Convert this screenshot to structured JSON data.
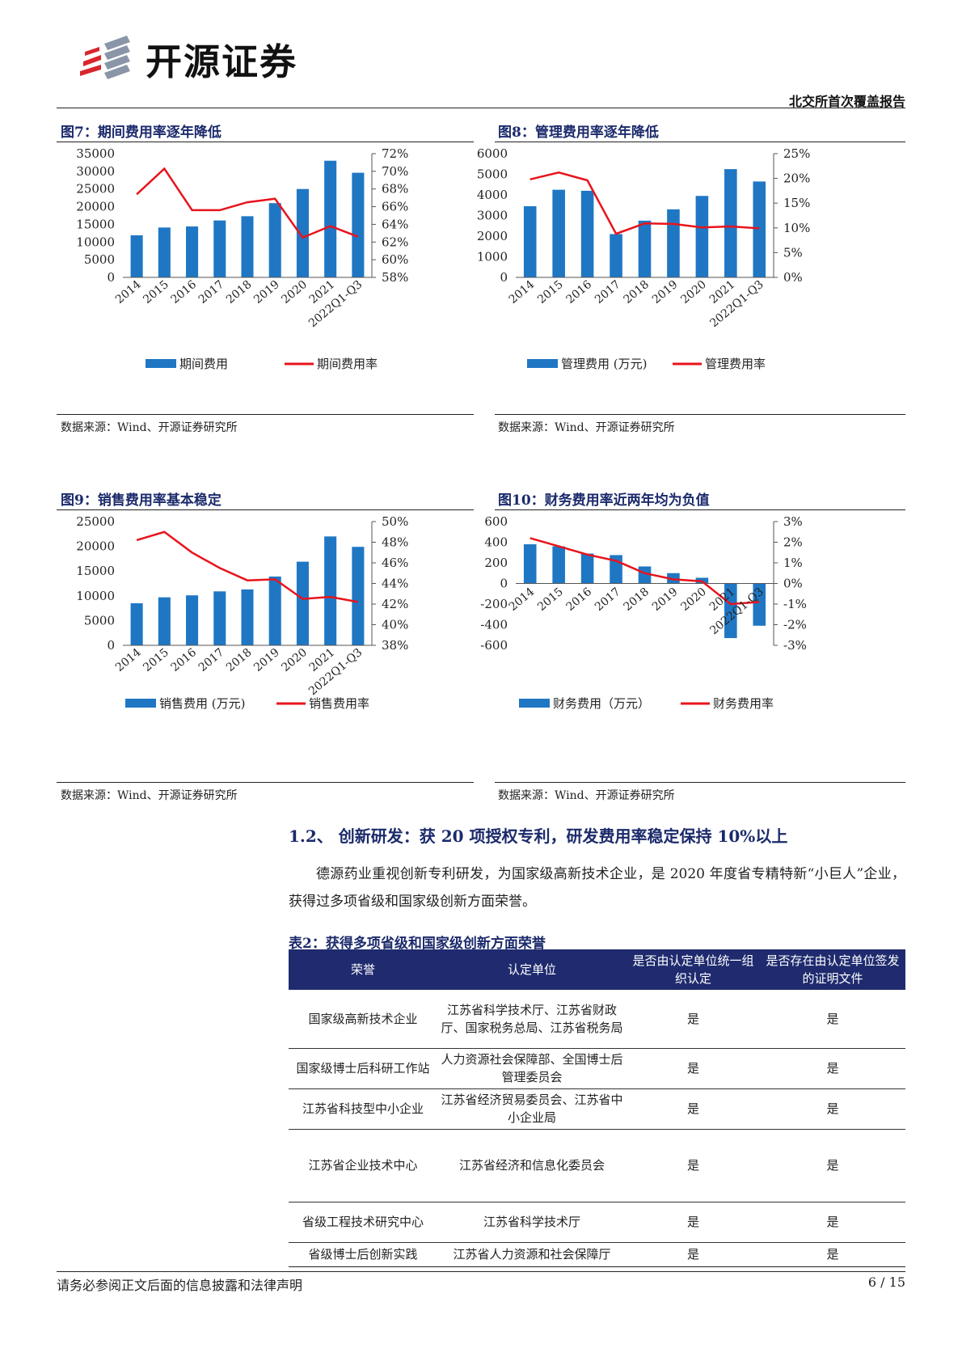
{
  "header": {
    "brand": "开源证券",
    "report_type": "北交所首次覆盖报告"
  },
  "figures": [
    {
      "title": "图7：期间费用率逐年降低",
      "source": "数据来源：Wind、开源证券研究所"
    },
    {
      "title": "图8：管理费用率逐年降低",
      "source": "数据来源：Wind、开源证券研究所"
    },
    {
      "title": "图9：销售费用率基本稳定",
      "source": "数据来源：Wind、开源证券研究所"
    },
    {
      "title": "图10：财务费用率近两年均为负值",
      "source": "数据来源：Wind、开源证券研究所"
    }
  ],
  "chart_data": [
    {
      "type": "bar",
      "categories": [
        "2014",
        "2015",
        "2016",
        "2017",
        "2018",
        "2019",
        "2020",
        "2021",
        "2022Q1-Q3"
      ],
      "series": [
        {
          "name": "期间费用",
          "type": "bar",
          "axis": "left",
          "values": [
            11900,
            14100,
            14400,
            16100,
            17300,
            21000,
            25000,
            33000,
            29600
          ]
        },
        {
          "name": "期间费用率",
          "type": "line",
          "axis": "right",
          "values": [
            67.4,
            70.3,
            65.6,
            65.6,
            66.5,
            66.9,
            62.5,
            63.8,
            62.6
          ]
        }
      ],
      "y_left": {
        "ticks": [
          "0",
          "5000",
          "10000",
          "15000",
          "20000",
          "25000",
          "30000",
          "35000"
        ],
        "range": [
          0,
          35000
        ]
      },
      "y_right": {
        "ticks": [
          "58%",
          "60%",
          "62%",
          "64%",
          "66%",
          "68%",
          "70%",
          "72%"
        ],
        "range": [
          58,
          72
        ]
      }
    },
    {
      "type": "bar",
      "categories": [
        "2014",
        "2015",
        "2016",
        "2017",
        "2018",
        "2019",
        "2020",
        "2021",
        "2022Q1-Q3"
      ],
      "series": [
        {
          "name": "管理费用 (万元)",
          "type": "bar",
          "axis": "left",
          "values": [
            3450,
            4250,
            4200,
            2100,
            2750,
            3300,
            3950,
            5250,
            4650
          ]
        },
        {
          "name": "管理费用率",
          "type": "line",
          "axis": "right",
          "values": [
            19.8,
            21.2,
            19.6,
            8.8,
            10.9,
            10.8,
            10.1,
            10.3,
            9.9
          ]
        }
      ],
      "y_left": {
        "ticks": [
          "0",
          "1000",
          "2000",
          "3000",
          "4000",
          "5000",
          "6000"
        ],
        "range": [
          0,
          6000
        ]
      },
      "y_right": {
        "ticks": [
          "0%",
          "5%",
          "10%",
          "15%",
          "20%",
          "25%"
        ],
        "range": [
          0,
          25
        ]
      }
    },
    {
      "type": "bar",
      "categories": [
        "2014",
        "2015",
        "2016",
        "2017",
        "2018",
        "2019",
        "2020",
        "2021",
        "2022Q1-Q3"
      ],
      "series": [
        {
          "name": "销售费用 (万元)",
          "type": "bar",
          "axis": "left",
          "values": [
            8500,
            9700,
            10100,
            10900,
            11300,
            13900,
            16900,
            22000,
            19900
          ]
        },
        {
          "name": "销售费用率",
          "type": "line",
          "axis": "right",
          "values": [
            48.2,
            49.0,
            47.0,
            45.5,
            44.3,
            44.4,
            42.5,
            42.7,
            42.2
          ]
        }
      ],
      "y_left": {
        "ticks": [
          "0",
          "5000",
          "10000",
          "15000",
          "20000",
          "25000"
        ],
        "range": [
          0,
          25000
        ]
      },
      "y_right": {
        "ticks": [
          "38%",
          "40%",
          "42%",
          "44%",
          "46%",
          "48%",
          "50%"
        ],
        "range": [
          38,
          50
        ]
      }
    },
    {
      "type": "bar",
      "categories": [
        "2014",
        "2015",
        "2016",
        "2017",
        "2018",
        "2019",
        "2020",
        "2021",
        "2022Q1-Q3"
      ],
      "series": [
        {
          "name": "财务费用（万元）",
          "type": "bar",
          "axis": "left",
          "values": [
            380,
            360,
            290,
            275,
            165,
            100,
            55,
            -530,
            -410
          ]
        },
        {
          "name": "财务费用率",
          "type": "line",
          "axis": "right",
          "values": [
            2.2,
            1.8,
            1.4,
            1.1,
            0.5,
            0.2,
            0.1,
            -1.0,
            -0.9
          ]
        }
      ],
      "y_left": {
        "ticks": [
          "-600",
          "-400",
          "-200",
          "0",
          "200",
          "400",
          "600"
        ],
        "range": [
          -600,
          600
        ]
      },
      "y_right": {
        "ticks": [
          "-3%",
          "-2%",
          "-1%",
          "0%",
          "1%",
          "2%",
          "3%"
        ],
        "range": [
          -3,
          3
        ]
      }
    }
  ],
  "section": {
    "heading": "1.2、 创新研发：获 20 项授权专利，研发费用率稳定保持 10%以上",
    "paragraph": "德源药业重视创新专利研发，为国家级高新技术企业，是 2020 年度省专精特新“小巨人”企业，获得过多项省级和国家级创新方面荣誉。"
  },
  "table": {
    "title": "表2：获得多项省级和国家级创新方面荣誉",
    "headers": [
      "荣誉",
      "认定单位",
      "是否由认定单位统一组织认定",
      "是否存在由认定单位签发的证明文件"
    ],
    "rows": [
      [
        "国家级高新技术企业",
        "江苏省科学技术厅、江苏省财政厅、国家税务总局、江苏省税务局",
        "是",
        "是"
      ],
      [
        "国家级博士后科研工作站",
        "人力资源社会保障部、全国博士后管理委员会",
        "是",
        "是"
      ],
      [
        "江苏省科技型中小企业",
        "江苏省经济贸易委员会、江苏省中小企业局",
        "是",
        "是"
      ],
      [
        "江苏省企业技术中心",
        "江苏省经济和信息化委员会",
        "是",
        "是"
      ],
      [
        "省级工程技术研究中心",
        "江苏省科学技术厅",
        "是",
        "是"
      ],
      [
        "省级博士后创新实践",
        "江苏省人力资源和社会保障厅",
        "是",
        "是"
      ]
    ]
  },
  "footer": {
    "disclaimer": "请务必参阅正文后面的信息披露和法律声明",
    "page": "6 / 15"
  },
  "colors": {
    "bar": "#1f77c4",
    "line": "#e8141c",
    "title": "#1b2a6b",
    "table_header": "#1f2b6e"
  }
}
